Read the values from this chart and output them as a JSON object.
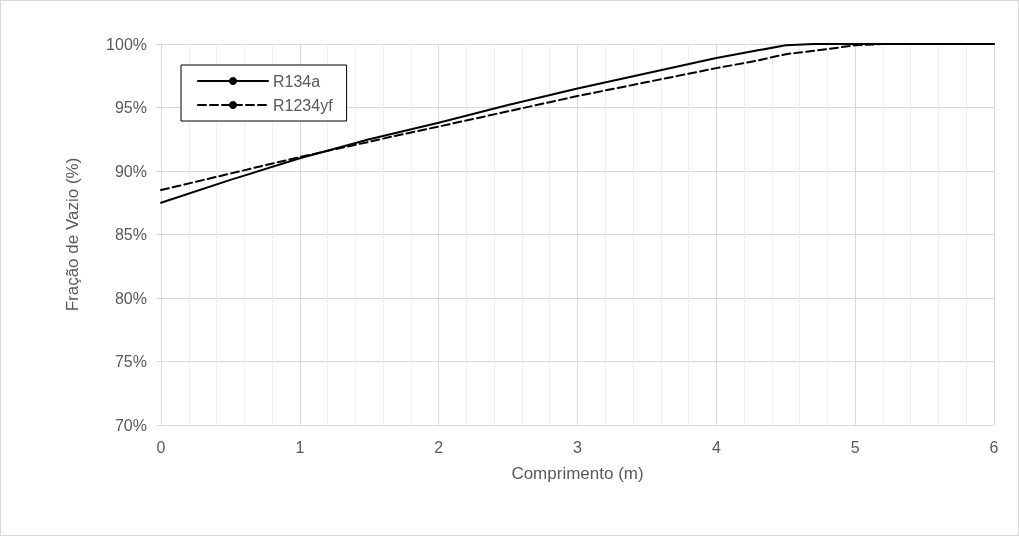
{
  "chart_data": {
    "type": "line",
    "xlabel": "Comprimento (m)",
    "ylabel": "Fração de Vazio (%)",
    "xlim": [
      0,
      6
    ],
    "xticks": [
      0,
      1,
      2,
      3,
      4,
      5,
      6
    ],
    "ylim": [
      70,
      100
    ],
    "yticks": [
      {
        "value": 70,
        "label": "70%"
      },
      {
        "value": 75,
        "label": "75%"
      },
      {
        "value": 80,
        "label": "80%"
      },
      {
        "value": 85,
        "label": "85%"
      },
      {
        "value": 90,
        "label": "90%"
      },
      {
        "value": 95,
        "label": "95%"
      },
      {
        "value": 100,
        "label": "100%"
      }
    ],
    "grid": true,
    "legend": "top left",
    "marker": "none",
    "series": [
      {
        "name": "R134a",
        "color": "#000000",
        "line_style": "solid",
        "x": [
          0,
          0.5,
          1,
          1.5,
          2,
          2.5,
          3,
          3.5,
          4,
          4.3,
          4.5,
          4.7,
          5,
          6
        ],
        "values": [
          87.5,
          89.3,
          91,
          92.5,
          93.8,
          95.2,
          96.5,
          97.7,
          98.9,
          99.5,
          99.9,
          100,
          100,
          100
        ]
      },
      {
        "name": "R1234yf",
        "color": "#000000",
        "line_style": "dashed",
        "x": [
          0,
          0.5,
          1,
          1.5,
          1.7,
          2,
          2.5,
          3,
          3.5,
          4,
          4.3,
          4.5,
          4.8,
          5,
          5.2,
          6
        ],
        "values": [
          88.5,
          89.8,
          91.1,
          92.3,
          92.8,
          93.5,
          94.7,
          95.9,
          97.0,
          98.1,
          98.7,
          99.2,
          99.6,
          99.9,
          100,
          100
        ]
      }
    ]
  }
}
